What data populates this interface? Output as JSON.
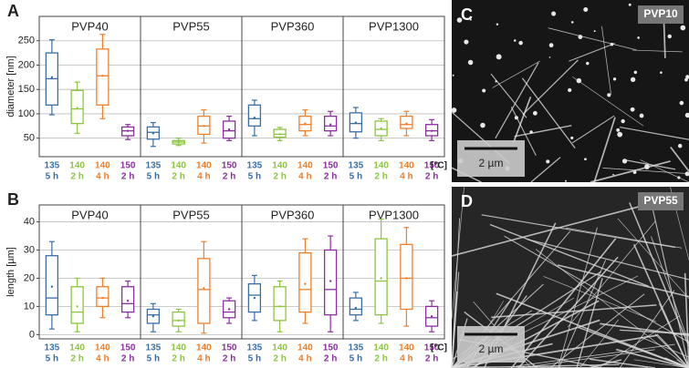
{
  "chart_data": [
    {
      "type": "box",
      "panel": "A",
      "ylabel": "diameter [nm]",
      "xunit": "[°C]",
      "categories": [
        "PVP40",
        "PVP55",
        "PVP360",
        "PVP1300"
      ],
      "ylim": [
        12,
        300
      ],
      "yticks": [
        50,
        100,
        150,
        200,
        250
      ],
      "grid": true,
      "series": [
        {
          "temperature": "135",
          "time": "5 h",
          "color": "#3a6ea5",
          "low": [
            98,
            33,
            55,
            50
          ],
          "q1": [
            118,
            48,
            75,
            63
          ],
          "median": [
            172,
            62,
            90,
            80
          ],
          "q3": [
            225,
            73,
            118,
            102
          ],
          "high": [
            252,
            82,
            128,
            113
          ],
          "mean": [
            175,
            60,
            92,
            82
          ]
        },
        {
          "temperature": "140",
          "time": "2 h",
          "color": "#8cc63f",
          "low": [
            60,
            35,
            45,
            45
          ],
          "q1": [
            80,
            38,
            52,
            55
          ],
          "median": [
            110,
            42,
            58,
            68
          ],
          "q3": [
            148,
            45,
            68,
            85
          ],
          "high": [
            165,
            50,
            72,
            90
          ],
          "mean": [
            112,
            42,
            58,
            70
          ]
        },
        {
          "temperature": "140",
          "time": "4 h",
          "color": "#f07f2a",
          "low": [
            90,
            40,
            55,
            55
          ],
          "q1": [
            118,
            58,
            65,
            70
          ],
          "median": [
            178,
            75,
            78,
            78
          ],
          "q3": [
            233,
            95,
            95,
            95
          ],
          "high": [
            263,
            108,
            108,
            105
          ],
          "mean": [
            178,
            75,
            80,
            80
          ]
        },
        {
          "temperature": "150",
          "time": "2 h",
          "color": "#8b2fa0",
          "low": [
            47,
            45,
            55,
            45
          ],
          "q1": [
            55,
            50,
            65,
            55
          ],
          "median": [
            65,
            65,
            75,
            65
          ],
          "q3": [
            73,
            85,
            95,
            78
          ],
          "high": [
            78,
            95,
            105,
            88
          ],
          "mean": [
            65,
            68,
            78,
            65
          ]
        }
      ]
    },
    {
      "type": "box",
      "panel": "B",
      "ylabel": "length [µm]",
      "xunit": "[°C]",
      "categories": [
        "PVP40",
        "PVP55",
        "PVP360",
        "PVP1300"
      ],
      "ylim": [
        -1.5,
        46
      ],
      "yticks": [
        0,
        10,
        20,
        30,
        40
      ],
      "grid": true,
      "series": [
        {
          "temperature": "135",
          "time": "5 h",
          "color": "#3a6ea5",
          "low": [
            2,
            1,
            5,
            5
          ],
          "q1": [
            7,
            4,
            8,
            7
          ],
          "median": [
            13,
            7,
            14,
            9
          ],
          "q3": [
            28,
            9,
            18,
            13
          ],
          "high": [
            33,
            11,
            21,
            15
          ],
          "mean": [
            17,
            6.5,
            13,
            9.5
          ]
        },
        {
          "temperature": "140",
          "time": "2 h",
          "color": "#8cc63f",
          "low": [
            1,
            1,
            1,
            4
          ],
          "q1": [
            4,
            3,
            5,
            7
          ],
          "median": [
            8,
            5,
            10,
            19
          ],
          "q3": [
            17,
            8,
            17,
            34
          ],
          "high": [
            20,
            9,
            19,
            41
          ],
          "mean": [
            10,
            5,
            10,
            20
          ]
        },
        {
          "temperature": "140",
          "time": "4 h",
          "color": "#f07f2a",
          "low": [
            6,
            0.5,
            4,
            3
          ],
          "q1": [
            10,
            4,
            8,
            9
          ],
          "median": [
            13,
            16,
            16,
            20
          ],
          "q3": [
            17,
            27,
            29,
            32
          ],
          "high": [
            20,
            33,
            34,
            38
          ],
          "mean": [
            13,
            16.5,
            18,
            20
          ]
        },
        {
          "temperature": "150",
          "time": "2 h",
          "color": "#8b2fa0",
          "low": [
            6,
            4,
            1,
            1
          ],
          "q1": [
            8,
            6,
            7,
            3
          ],
          "median": [
            11,
            8,
            16,
            6
          ],
          "q3": [
            17,
            12,
            30,
            10
          ],
          "high": [
            19,
            13,
            35,
            12
          ],
          "mean": [
            12,
            9,
            19,
            6.5
          ]
        }
      ]
    }
  ],
  "panels": [
    {
      "letter": "C",
      "label": "PVP10",
      "scale": "2 µm"
    },
    {
      "letter": "D",
      "label": "PVP55",
      "scale": "2 µm"
    }
  ]
}
